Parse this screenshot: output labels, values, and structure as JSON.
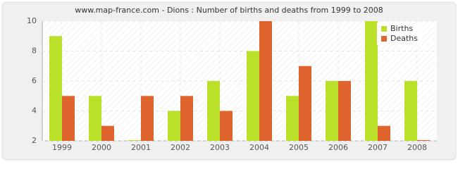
{
  "chart_data": {
    "type": "bar",
    "title": "www.map-france.com - Dions : Number of births and deaths from 1999 to 2008",
    "categories": [
      "1999",
      "2000",
      "2001",
      "2002",
      "2003",
      "2004",
      "2005",
      "2006",
      "2007",
      "2008"
    ],
    "series": [
      {
        "name": "Births",
        "color": "#bbe02a",
        "values": [
          9,
          5,
          2,
          4,
          6,
          8,
          5,
          6,
          10,
          6
        ]
      },
      {
        "name": "Deaths",
        "color": "#e0642e",
        "values": [
          5,
          3,
          5,
          5,
          4,
          10,
          7,
          6,
          3,
          2
        ]
      }
    ],
    "ylim": [
      2,
      10
    ],
    "yticks": [
      2,
      4,
      6,
      8,
      10
    ],
    "grid": true,
    "legend": "top-right"
  }
}
